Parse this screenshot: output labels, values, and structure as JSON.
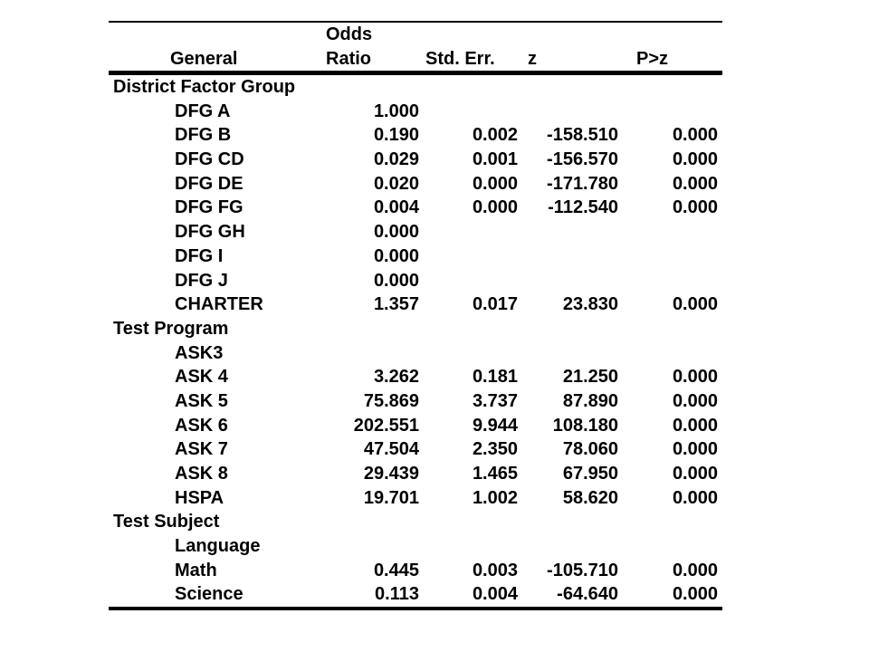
{
  "table": {
    "title": "Odds ratio regression results table",
    "colors": {
      "text": "#000000",
      "background": "#ffffff",
      "rule": "#000000"
    },
    "header": {
      "general": "General",
      "odds_line1": "Odds",
      "odds_line2": "Ratio",
      "std_err": "Std. Err.",
      "z": "z",
      "p": "P>z"
    },
    "rows": [
      {
        "type": "section",
        "label": "District Factor Group",
        "odds_ratio": "",
        "std_err": "",
        "z": "",
        "p": ""
      },
      {
        "type": "item",
        "label": "DFG A",
        "odds_ratio": "1.000",
        "std_err": "",
        "z": "",
        "p": ""
      },
      {
        "type": "item",
        "label": "DFG B",
        "odds_ratio": "0.190",
        "std_err": "0.002",
        "z": "-158.510",
        "p": "0.000"
      },
      {
        "type": "item",
        "label": "DFG CD",
        "odds_ratio": "0.029",
        "std_err": "0.001",
        "z": "-156.570",
        "p": "0.000"
      },
      {
        "type": "item",
        "label": "DFG DE",
        "odds_ratio": "0.020",
        "std_err": "0.000",
        "z": "-171.780",
        "p": "0.000"
      },
      {
        "type": "item",
        "label": "DFG FG",
        "odds_ratio": "0.004",
        "std_err": "0.000",
        "z": "-112.540",
        "p": "0.000"
      },
      {
        "type": "item",
        "label": "DFG GH",
        "odds_ratio": "0.000",
        "std_err": "",
        "z": "",
        "p": ""
      },
      {
        "type": "item",
        "label": "DFG I",
        "odds_ratio": "0.000",
        "std_err": "",
        "z": "",
        "p": ""
      },
      {
        "type": "item",
        "label": "DFG J",
        "odds_ratio": "0.000",
        "std_err": "",
        "z": "",
        "p": ""
      },
      {
        "type": "item",
        "label": "CHARTER",
        "odds_ratio": "1.357",
        "std_err": "0.017",
        "z": "23.830",
        "p": "0.000"
      },
      {
        "type": "section",
        "label": "Test Program",
        "odds_ratio": "",
        "std_err": "",
        "z": "",
        "p": ""
      },
      {
        "type": "item",
        "label": "ASK3",
        "odds_ratio": "",
        "std_err": "",
        "z": "",
        "p": ""
      },
      {
        "type": "item",
        "label": "ASK 4",
        "odds_ratio": "3.262",
        "std_err": "0.181",
        "z": "21.250",
        "p": "0.000"
      },
      {
        "type": "item",
        "label": "ASK 5",
        "odds_ratio": "75.869",
        "std_err": "3.737",
        "z": "87.890",
        "p": "0.000"
      },
      {
        "type": "item",
        "label": "ASK 6",
        "odds_ratio": "202.551",
        "std_err": "9.944",
        "z": "108.180",
        "p": "0.000"
      },
      {
        "type": "item",
        "label": "ASK 7",
        "odds_ratio": "47.504",
        "std_err": "2.350",
        "z": "78.060",
        "p": "0.000"
      },
      {
        "type": "item",
        "label": "ASK 8",
        "odds_ratio": "29.439",
        "std_err": "1.465",
        "z": "67.950",
        "p": "0.000"
      },
      {
        "type": "item",
        "label": "HSPA",
        "odds_ratio": "19.701",
        "std_err": "1.002",
        "z": "58.620",
        "p": "0.000"
      },
      {
        "type": "section",
        "label": "Test Subject",
        "odds_ratio": "",
        "std_err": "",
        "z": "",
        "p": ""
      },
      {
        "type": "item",
        "label": "Language",
        "odds_ratio": "",
        "std_err": "",
        "z": "",
        "p": ""
      },
      {
        "type": "item",
        "label": "Math",
        "odds_ratio": "0.445",
        "std_err": "0.003",
        "z": "-105.710",
        "p": "0.000"
      },
      {
        "type": "item",
        "label": "Science",
        "odds_ratio": "0.113",
        "std_err": "0.004",
        "z": "-64.640",
        "p": "0.000"
      }
    ]
  }
}
